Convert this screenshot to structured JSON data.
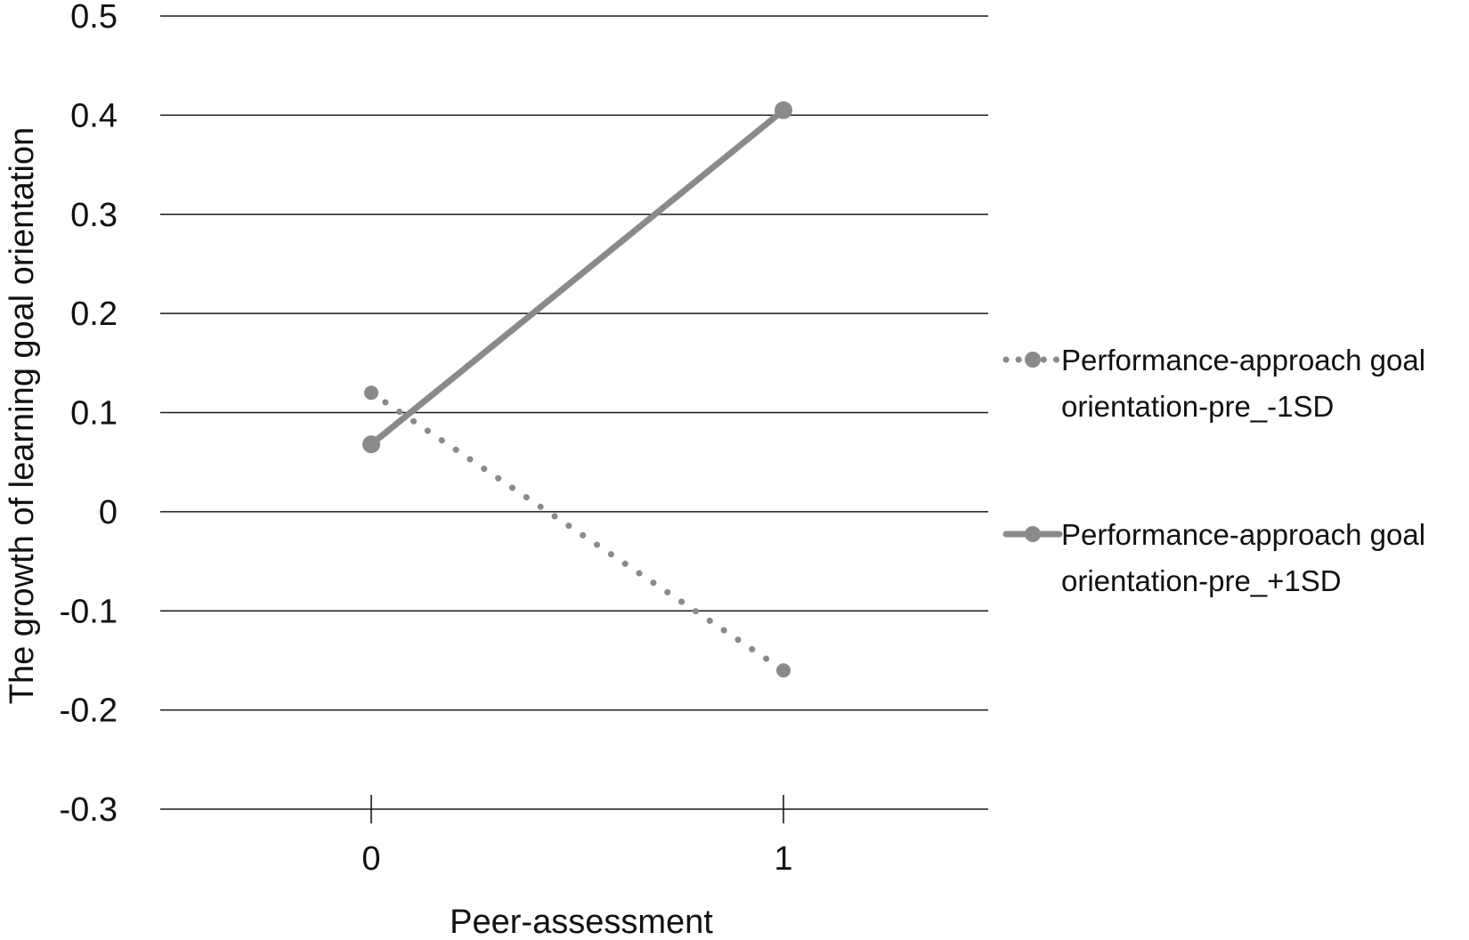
{
  "chart_data": {
    "type": "line",
    "title": "",
    "xlabel": "Peer-assessment",
    "ylabel": "The growth of learning goal orientation",
    "x": [
      0,
      1
    ],
    "x_tick_labels": [
      "0",
      "1"
    ],
    "y_ticks": [
      0.5,
      0.4,
      0.3,
      0.2,
      0.1,
      0,
      -0.1,
      -0.2,
      -0.3
    ],
    "y_tick_labels": [
      "0.5",
      "0.4",
      "0.3",
      "0.2",
      "0.1",
      "0",
      "-0.1",
      "-0.2",
      "-0.3"
    ],
    "ylim": [
      -0.3,
      0.5
    ],
    "grid": true,
    "legend_position": "right",
    "series": [
      {
        "name_lines": [
          "Performance-approach goal",
          "orientation-pre_-1SD"
        ],
        "values": [
          0.12,
          -0.16
        ],
        "style": "dotted",
        "color": "#8a8a8a"
      },
      {
        "name_lines": [
          "Performance-approach goal",
          "orientation-pre_+1SD"
        ],
        "values": [
          0.068,
          0.405
        ],
        "style": "solid",
        "color": "#8a8a8a"
      }
    ]
  }
}
